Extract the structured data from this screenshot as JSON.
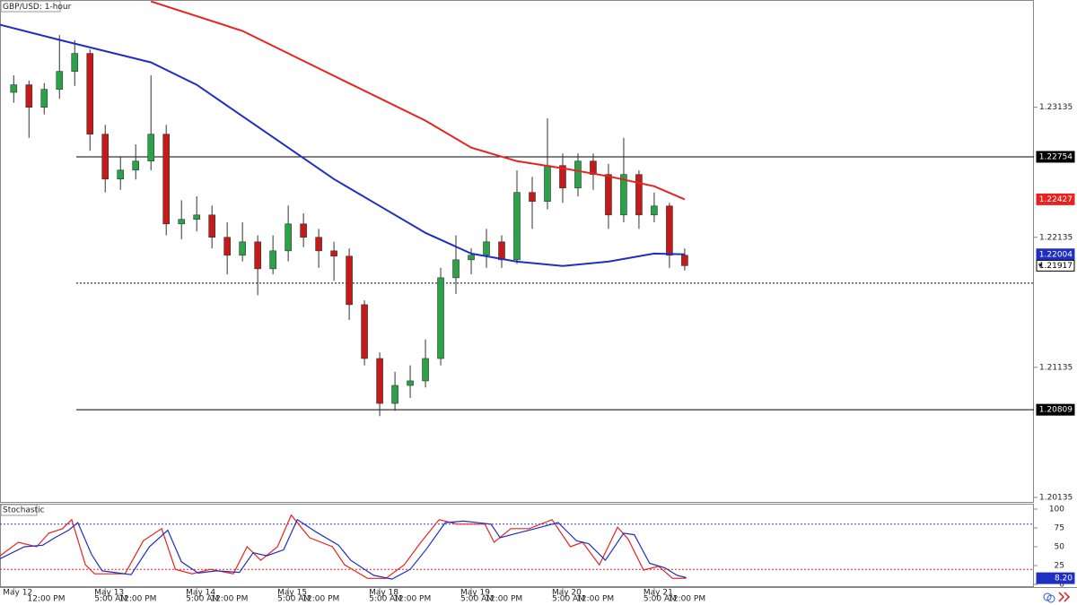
{
  "chart_data": [
    {
      "type": "candlestick",
      "title": "GBP/USD: 1-hour",
      "open": [
        1.2325,
        1.23308,
        1.23135,
        1.23273,
        1.23411,
        1.23549,
        1.22928,
        1.22583,
        1.22652,
        1.22721,
        1.22928,
        1.22238,
        1.22273,
        1.22307,
        1.22135,
        1.21997,
        1.221,
        1.21893,
        1.22031,
        1.22238,
        1.22135,
        1.22031,
        1.2199,
        1.21617,
        1.21203,
        1.20858,
        1.20996,
        1.21031,
        1.21203,
        1.21824,
        1.21962,
        1.21997,
        1.221,
        1.21962,
        1.2248,
        1.22411,
        1.22687,
        1.22514,
        1.22721,
        1.22618,
        1.22307,
        1.22618,
        1.22307,
        1.22376,
        1.21997
      ],
      "high": [
        1.2338,
        1.2334,
        1.2332,
        1.2369,
        1.2365,
        1.2358,
        1.23,
        1.2275,
        1.2285,
        1.2338,
        1.23,
        1.2242,
        1.2245,
        1.2238,
        1.2225,
        1.2225,
        1.2215,
        1.2215,
        1.2238,
        1.2232,
        1.222,
        1.221,
        1.2205,
        1.2165,
        1.2125,
        1.211,
        1.2115,
        1.2135,
        1.219,
        1.2215,
        1.2205,
        1.222,
        1.2215,
        1.2265,
        1.226,
        1.2305,
        1.2278,
        1.2278,
        1.2278,
        1.227,
        1.229,
        1.2265,
        1.2248,
        1.224,
        1.2205
      ],
      "low": [
        1.2317,
        1.229,
        1.2308,
        1.232,
        1.233,
        1.228,
        1.2248,
        1.225,
        1.2258,
        1.2265,
        1.2215,
        1.2212,
        1.2218,
        1.2205,
        1.2185,
        1.2195,
        1.2169,
        1.2185,
        1.2195,
        1.2206,
        1.219,
        1.218,
        1.215,
        1.2115,
        1.2076,
        1.208,
        1.209,
        1.2098,
        1.2115,
        1.217,
        1.2185,
        1.219,
        1.219,
        1.2193,
        1.222,
        1.2235,
        1.224,
        1.2245,
        1.225,
        1.222,
        1.2225,
        1.222,
        1.2225,
        1.219,
        1.2188
      ],
      "close": [
        1.23308,
        1.23135,
        1.23273,
        1.23411,
        1.23549,
        1.22928,
        1.22583,
        1.22652,
        1.22721,
        1.22928,
        1.22238,
        1.22273,
        1.22307,
        1.22135,
        1.21997,
        1.221,
        1.21893,
        1.22031,
        1.22238,
        1.22135,
        1.22031,
        1.2199,
        1.21617,
        1.21203,
        1.20858,
        1.20996,
        1.21031,
        1.21203,
        1.21824,
        1.21962,
        1.21997,
        1.221,
        1.21962,
        1.2248,
        1.22411,
        1.22687,
        1.22514,
        1.22721,
        1.22618,
        1.22307,
        1.22618,
        1.22307,
        1.22376,
        1.21997,
        1.21917
      ],
      "up_color": "#2aa348",
      "down_color": "#c41a1a",
      "series": [
        {
          "color": "#e8231f",
          "x": [
            9,
            15,
            21,
            27,
            30,
            33,
            36,
            39,
            42,
            44
          ],
          "values": [
            1.23949,
            1.23722,
            1.23377,
            1.23032,
            1.22825,
            1.22721,
            1.22666,
            1.22604,
            1.22528,
            1.22427
          ]
        },
        {
          "color": "#1f2fc2",
          "x": [
            -0.9,
            3,
            9,
            12,
            15,
            18,
            21,
            24,
            27,
            30,
            33,
            36,
            39,
            42,
            44
          ],
          "values": [
            1.2377,
            1.23653,
            1.2348,
            1.23308,
            1.23066,
            1.22825,
            1.22583,
            1.22376,
            1.22169,
            1.2201,
            1.21948,
            1.21914,
            1.21948,
            1.2201,
            1.22004
          ]
        }
      ],
      "levels": [
        {
          "value": 1.22754,
          "style": "solid"
        },
        {
          "value": 1.21783,
          "style": "dotted"
        },
        {
          "value": 1.20809,
          "style": "solid"
        }
      ],
      "price_tags": [
        {
          "value": 1.22754,
          "color": "#000000"
        },
        {
          "value": 1.22427,
          "color": "#e8231f"
        },
        {
          "value": 1.22004,
          "color": "#1f2fc2"
        },
        {
          "value": 1.21917,
          "color": "#ffffff"
        },
        {
          "value": 1.20809,
          "color": "#000000"
        }
      ],
      "ylim": [
        1.201,
        1.2396
      ],
      "yticks": [
        1.23135,
        1.22135,
        1.21135,
        1.20135
      ],
      "xlim": [
        -0.9,
        66.9
      ],
      "xticks": [
        {
          "value": 0,
          "label": "May 12"
        },
        {
          "value": 6,
          "label": "May 13"
        },
        {
          "value": 12,
          "label": "May 14"
        },
        {
          "value": 18,
          "label": "May 15"
        },
        {
          "value": 24,
          "label": "May 18"
        },
        {
          "value": 30,
          "label": "May 19"
        },
        {
          "value": 36,
          "label": "May 20"
        },
        {
          "value": 42,
          "label": "May 21"
        }
      ],
      "xticks_minor": [
        {
          "value": 1.6,
          "label": "12:00 PM"
        },
        {
          "value": 6,
          "label": "5:00 AM"
        },
        {
          "value": 7.6,
          "label": "12:00 PM"
        },
        {
          "value": 12,
          "label": "5:00 AM"
        },
        {
          "value": 13.6,
          "label": "12:00 PM"
        },
        {
          "value": 18,
          "label": "5:00 AM"
        },
        {
          "value": 19.6,
          "label": "12:00 PM"
        },
        {
          "value": 24,
          "label": "5:00 AM"
        },
        {
          "value": 25.6,
          "label": "12:00 PM"
        },
        {
          "value": 30,
          "label": "5:00 AM"
        },
        {
          "value": 31.6,
          "label": "12:00 PM"
        },
        {
          "value": 36,
          "label": "5:00 AM"
        },
        {
          "value": 37.6,
          "label": "12:00 PM"
        },
        {
          "value": 42,
          "label": "5:00 AM"
        },
        {
          "value": 43.6,
          "label": "12:00 PM"
        }
      ]
    },
    {
      "type": "line",
      "title": "Stochastic",
      "series": [
        {
          "color": "#e8231f",
          "x": [
            -0.9,
            0.3,
            1.5,
            2.3,
            3.2,
            3.8,
            4.7,
            5.3,
            7.3,
            8.5,
            9.7,
            10.6,
            11.7,
            12.9,
            14.4,
            15.3,
            16.2,
            17.3,
            18.2,
            19.4,
            20.9,
            21.7,
            23.2,
            24.4,
            25.6,
            26.7,
            27.9,
            29.1,
            30.9,
            31.5,
            32.6,
            33.8,
            35.3,
            36.5,
            37.3,
            38.4,
            39.6,
            40.3,
            41.3,
            42.3,
            43.2,
            44.1
          ],
          "values": [
            38,
            56,
            50,
            68,
            74,
            86,
            26,
            14,
            14,
            58,
            74,
            20,
            14,
            20,
            14,
            50,
            32,
            50,
            92,
            62,
            50,
            26,
            8,
            8,
            26,
            56,
            86,
            80,
            80,
            56,
            74,
            74,
            86,
            50,
            56,
            26,
            76,
            60,
            19,
            24,
            8,
            8.2
          ]
        },
        {
          "color": "#1f2fc2",
          "x": [
            -0.9,
            0.7,
            1.9,
            2.7,
            3.6,
            4.2,
            5.1,
            5.8,
            7.7,
            8.9,
            10.1,
            11,
            12.1,
            13.3,
            14.8,
            15.7,
            16.6,
            17.7,
            18.6,
            19.8,
            21.3,
            22.1,
            23.6,
            24.8,
            26,
            27.1,
            28.3,
            29.5,
            31.3,
            31.9,
            33,
            34.2,
            35.7,
            36.9,
            37.7,
            38.8,
            40,
            40.7,
            41.7,
            42.7,
            43.5,
            44.1
          ],
          "values": [
            34,
            50,
            52,
            62,
            72,
            82,
            40,
            18,
            13,
            50,
            72,
            30,
            15,
            18,
            16,
            42,
            38,
            46,
            86,
            70,
            52,
            32,
            12,
            7,
            20,
            48,
            82,
            84,
            80,
            62,
            68,
            74,
            82,
            58,
            54,
            32,
            68,
            66,
            28,
            22,
            12,
            9
          ]
        }
      ],
      "levels": [
        {
          "value": 80,
          "color": "#3b3bd6"
        },
        {
          "value": 20,
          "color": "#e8231f"
        }
      ],
      "price_tags": [
        {
          "value": 8.2,
          "label": "8.20",
          "color": "#1f2fc2"
        }
      ],
      "ylim": [
        0,
        100
      ],
      "yticks": [
        0,
        25,
        50,
        75,
        100
      ]
    }
  ]
}
